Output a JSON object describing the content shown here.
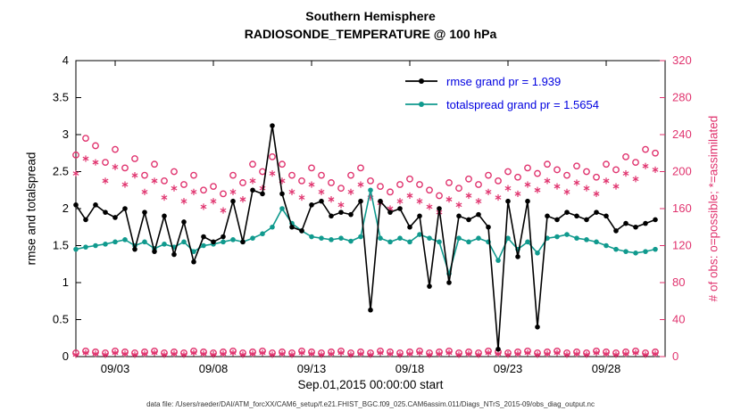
{
  "figure": {
    "footer": "data file: /Users/raeder/DAI/ATM_forcXX/CAM6_setup/f.e21.FHIST_BGC.f09_025.CAM6assim.011/Diags_NTrS_2015-09/obs_diag_output.nc"
  },
  "chart_data": {
    "type": "line",
    "title": "Southern Hemisphere",
    "subtitle": "RADIOSONDE_TEMPERATURE @ 100 hPa",
    "xlabel": "Sep.01,2015 00:00:00 start",
    "ylabel_left": "rmse and totalspread",
    "ylabel_right": "# of obs: o=possible; *=assimilated",
    "grid": false,
    "legend_position": "top-right-inside",
    "x_range": [
      1,
      31
    ],
    "y_left_range": [
      0,
      4
    ],
    "y_right_range": [
      0,
      320
    ],
    "x_ticks": [
      {
        "value": 3,
        "label": "09/03"
      },
      {
        "value": 8,
        "label": "09/08"
      },
      {
        "value": 13,
        "label": "09/13"
      },
      {
        "value": 18,
        "label": "09/18"
      },
      {
        "value": 23,
        "label": "09/23"
      },
      {
        "value": 28,
        "label": "09/28"
      }
    ],
    "y_left_ticks": [
      0,
      0.5,
      1,
      1.5,
      2,
      2.5,
      3,
      3.5,
      4
    ],
    "y_right_ticks": [
      0,
      40,
      80,
      120,
      160,
      200,
      240,
      280,
      320
    ],
    "colors": {
      "rmse": "#000000",
      "totalspread": "#109a8e",
      "obs": "#e0336e",
      "legend_text": "#0000e0",
      "axis": "#000000"
    },
    "x": [
      1,
      1.5,
      2,
      2.5,
      3,
      3.5,
      4,
      4.5,
      5,
      5.5,
      6,
      6.5,
      7,
      7.5,
      8,
      8.5,
      9,
      9.5,
      10,
      10.5,
      11,
      11.5,
      12,
      12.5,
      13,
      13.5,
      14,
      14.5,
      15,
      15.5,
      16,
      16.5,
      17,
      17.5,
      18,
      18.5,
      19,
      19.5,
      20,
      20.5,
      21,
      21.5,
      22,
      22.5,
      23,
      23.5,
      24,
      24.5,
      25,
      25.5,
      26,
      26.5,
      27,
      27.5,
      28,
      28.5,
      29,
      29.5,
      30,
      30.5
    ],
    "series": [
      {
        "name": "possible",
        "axis": "right",
        "color": "#e0336e",
        "marker": "circle",
        "line": false,
        "values": [
          218,
          236,
          228,
          210,
          224,
          204,
          214,
          196,
          208,
          190,
          200,
          186,
          196,
          180,
          184,
          176,
          196,
          188,
          208,
          200,
          216,
          208,
          196,
          190,
          204,
          196,
          188,
          182,
          196,
          204,
          190,
          184,
          178,
          186,
          192,
          186,
          180,
          174,
          188,
          182,
          192,
          186,
          196,
          190,
          200,
          194,
          204,
          198,
          208,
          202,
          196,
          206,
          200,
          194,
          208,
          202,
          216,
          210,
          224,
          220
        ]
      },
      {
        "name": "assimilated",
        "axis": "right",
        "color": "#e0336e",
        "marker": "asterisk",
        "line": false,
        "values": [
          198,
          214,
          210,
          190,
          205,
          186,
          196,
          178,
          190,
          172,
          182,
          168,
          178,
          162,
          168,
          158,
          178,
          170,
          190,
          182,
          198,
          190,
          178,
          172,
          186,
          178,
          170,
          164,
          178,
          186,
          172,
          166,
          160,
          168,
          174,
          168,
          162,
          156,
          170,
          164,
          174,
          168,
          178,
          172,
          182,
          176,
          186,
          180,
          190,
          184,
          178,
          188,
          182,
          176,
          190,
          184,
          198,
          192,
          206,
          202
        ]
      },
      {
        "name": "possible_low",
        "axis": "right",
        "color": "#e0336e",
        "marker": "circle",
        "line": false,
        "values": [
          4,
          6,
          5,
          4,
          6,
          5,
          4,
          5,
          6,
          4,
          5,
          4,
          6,
          5,
          4,
          5,
          6,
          4,
          5,
          6,
          4,
          5,
          4,
          6,
          5,
          4,
          5,
          6,
          4,
          5,
          4,
          6,
          5,
          4,
          5,
          6,
          4,
          5,
          6,
          4,
          5,
          4,
          6,
          5,
          4,
          5,
          6,
          4,
          5,
          6,
          4,
          5,
          4,
          6,
          5,
          4,
          5,
          6,
          4,
          5
        ]
      },
      {
        "name": "assimilated_low",
        "axis": "right",
        "color": "#e0336e",
        "marker": "asterisk",
        "line": false,
        "values": [
          2,
          4,
          3,
          2,
          4,
          3,
          2,
          3,
          4,
          2,
          3,
          2,
          4,
          3,
          2,
          3,
          4,
          2,
          3,
          4,
          2,
          3,
          2,
          4,
          3,
          2,
          3,
          4,
          2,
          3,
          2,
          4,
          3,
          2,
          3,
          4,
          2,
          3,
          4,
          2,
          3,
          2,
          4,
          3,
          2,
          3,
          4,
          2,
          3,
          4,
          2,
          3,
          2,
          4,
          3,
          2,
          3,
          4,
          2,
          3
        ]
      },
      {
        "name": "totalspread",
        "axis": "left",
        "color": "#109a8e",
        "marker": "dot",
        "line": true,
        "values": [
          1.45,
          1.48,
          1.5,
          1.52,
          1.55,
          1.58,
          1.5,
          1.55,
          1.46,
          1.52,
          1.48,
          1.55,
          1.42,
          1.5,
          1.52,
          1.55,
          1.58,
          1.55,
          1.6,
          1.66,
          1.75,
          2.0,
          1.8,
          1.7,
          1.62,
          1.6,
          1.58,
          1.6,
          1.56,
          1.62,
          2.25,
          1.6,
          1.55,
          1.6,
          1.55,
          1.65,
          1.6,
          1.55,
          1.12,
          1.6,
          1.55,
          1.6,
          1.55,
          1.3,
          1.6,
          1.45,
          1.55,
          1.4,
          1.6,
          1.62,
          1.65,
          1.6,
          1.58,
          1.55,
          1.5,
          1.45,
          1.42,
          1.4,
          1.42,
          1.45
        ]
      },
      {
        "name": "rmse",
        "axis": "left",
        "color": "#000000",
        "marker": "dot",
        "line": true,
        "values": [
          2.05,
          1.85,
          2.05,
          1.95,
          1.88,
          2.0,
          1.45,
          1.95,
          1.42,
          1.9,
          1.38,
          1.82,
          1.28,
          1.62,
          1.55,
          1.62,
          2.1,
          1.55,
          2.25,
          2.2,
          3.12,
          2.2,
          1.75,
          1.7,
          2.05,
          2.1,
          1.9,
          1.95,
          1.92,
          2.1,
          0.63,
          2.1,
          1.95,
          2.0,
          1.75,
          1.9,
          0.95,
          2.0,
          1.0,
          1.9,
          1.85,
          1.92,
          1.75,
          0.1,
          2.1,
          1.35,
          2.1,
          0.4,
          1.9,
          1.85,
          1.95,
          1.9,
          1.85,
          1.95,
          1.9,
          1.7,
          1.8,
          1.75,
          1.8,
          1.85
        ]
      }
    ],
    "legend": [
      {
        "label": "rmse grand pr = 1.939",
        "color": "#000000"
      },
      {
        "label": "totalspread grand pr = 1.5654",
        "color": "#109a8e"
      }
    ]
  }
}
